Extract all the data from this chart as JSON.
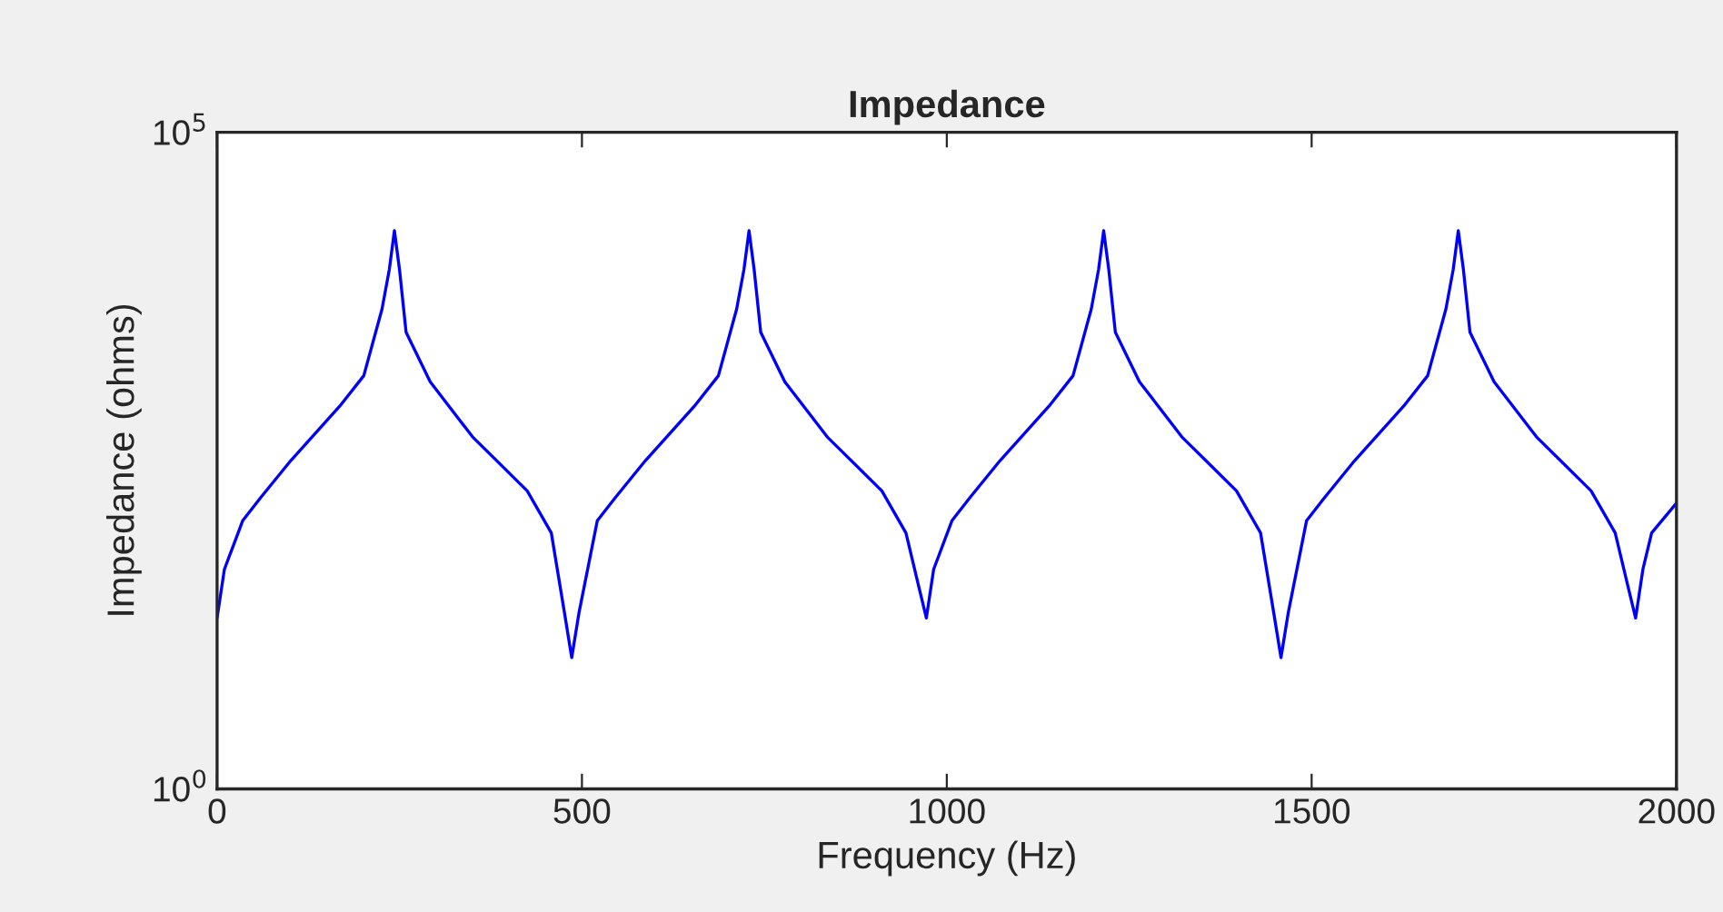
{
  "chart_data": {
    "type": "line",
    "title": "Impedance",
    "xlabel": "Frequency (Hz)",
    "ylabel": "Impedance (ohms)",
    "log": "y",
    "marker": "none",
    "line_style": "solid",
    "xlim": [
      0,
      2000
    ],
    "xticks": [
      0,
      500,
      1000,
      1500,
      2000
    ],
    "ylim": [
      1,
      100000
    ],
    "yticks": [
      {
        "value": 1,
        "label": "10$^{0}$"
      },
      {
        "value": 100000,
        "label": "10$^{5}$"
      }
    ],
    "x": [
      0,
      10,
      35,
      60,
      101,
      168,
      201,
      226,
      236,
      243,
      250,
      259,
      292,
      350,
      425,
      458,
      476,
      486,
      496,
      521,
      546,
      587,
      654,
      687,
      712,
      722,
      729,
      736,
      745,
      778,
      836,
      911,
      944,
      962,
      972,
      982,
      1007,
      1032,
      1073,
      1140,
      1173,
      1198,
      1208,
      1215,
      1222,
      1231,
      1264,
      1322,
      1397,
      1430,
      1448,
      1458,
      1468,
      1493,
      1518,
      1559,
      1626,
      1659,
      1684,
      1694,
      1701,
      1708,
      1717,
      1750,
      1808,
      1883,
      1916,
      1934,
      1944,
      1954,
      1966,
      2000
    ],
    "series": [
      {
        "color": "#0000ff",
        "values": [
          20,
          47,
          110,
          166,
          316,
          820,
          1400,
          4500,
          9000,
          17800,
          9000,
          3000,
          1260,
          480,
          186,
          89,
          22,
          10,
          22,
          110,
          166,
          316,
          820,
          1400,
          4500,
          9000,
          17800,
          9000,
          3000,
          1260,
          480,
          186,
          89,
          34,
          20,
          47,
          110,
          166,
          316,
          820,
          1400,
          4500,
          9000,
          17800,
          9000,
          3000,
          1260,
          480,
          186,
          89,
          22,
          10,
          22,
          110,
          166,
          316,
          820,
          1400,
          4500,
          9000,
          17800,
          9000,
          3000,
          1260,
          480,
          186,
          89,
          34,
          20,
          47,
          89,
          150
        ]
      }
    ]
  }
}
